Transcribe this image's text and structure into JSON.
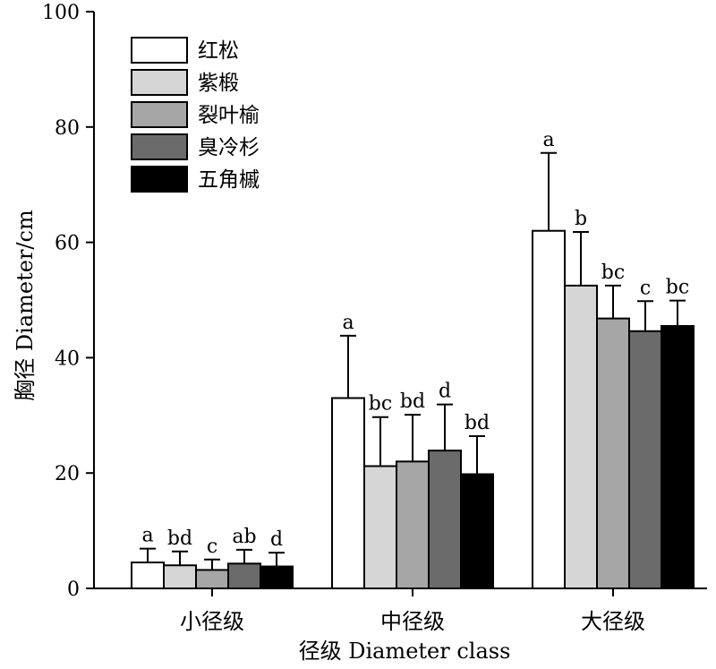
{
  "chart_data": {
    "type": "bar",
    "xlabel": "径级 Diameter class",
    "ylabel": "胸径 Diameter/cm",
    "ylim": [
      0,
      100
    ],
    "yticks": [
      0,
      20,
      40,
      60,
      80,
      100
    ],
    "grid": false,
    "legend_position": "top-left",
    "categories": [
      "小径级",
      "中径级",
      "大径级"
    ],
    "series": [
      {
        "name": "红松",
        "color": "#ffffff",
        "values": [
          4.5,
          33.0,
          62.0
        ],
        "errors": [
          2.4,
          10.8,
          13.5
        ],
        "labels": [
          "a",
          "a",
          "a"
        ]
      },
      {
        "name": "紫椴",
        "color": "#d6d6d6",
        "values": [
          4.0,
          21.2,
          52.5
        ],
        "errors": [
          2.4,
          8.5,
          9.3
        ],
        "labels": [
          "bd",
          "bc",
          "b"
        ]
      },
      {
        "name": "裂叶榆",
        "color": "#a6a6a6",
        "values": [
          3.2,
          22.0,
          46.8
        ],
        "errors": [
          1.8,
          8.1,
          5.7
        ],
        "labels": [
          "c",
          "bd",
          "bc"
        ]
      },
      {
        "name": "臭冷杉",
        "color": "#6b6b6b",
        "values": [
          4.3,
          23.9,
          44.6
        ],
        "errors": [
          2.4,
          8.0,
          5.2
        ],
        "labels": [
          "ab",
          "d",
          "c"
        ]
      },
      {
        "name": "五角槭",
        "color": "#000000",
        "values": [
          3.8,
          19.8,
          45.5
        ],
        "errors": [
          2.4,
          6.6,
          4.4
        ],
        "labels": [
          "d",
          "bd",
          "bc"
        ]
      }
    ]
  }
}
